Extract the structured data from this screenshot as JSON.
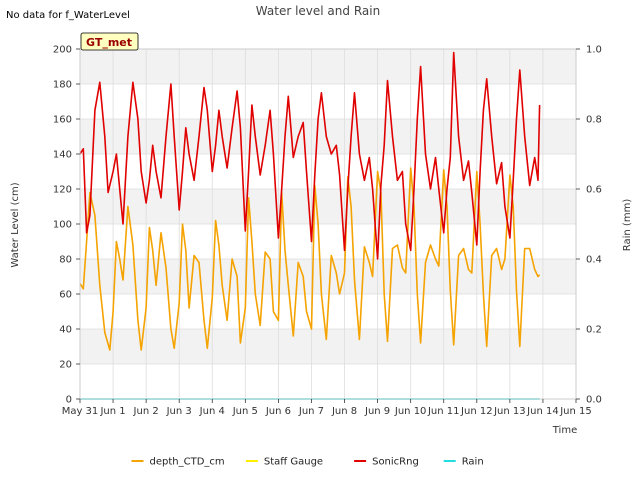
{
  "header": {
    "note": "No data for f_WaterLevel",
    "site_badge": "GT_met"
  },
  "chart_data": {
    "type": "line",
    "title": "Water level and Rain",
    "xlabel": "Time",
    "ylabel": "Water Level (cm)",
    "y2label": "Rain (mm)",
    "x_unit": "days since May 31",
    "xlim": [
      0,
      15
    ],
    "ylim": [
      0,
      200
    ],
    "y2lim": [
      0,
      1.0
    ],
    "x_ticks": [
      0,
      1,
      2,
      3,
      4,
      5,
      6,
      7,
      8,
      9,
      10,
      11,
      12,
      13,
      14,
      15
    ],
    "x_tick_labels": [
      "May 31",
      "Jun 1",
      "Jun 2",
      "Jun 3",
      "Jun 4",
      "Jun 5",
      "Jun 6",
      "Jun 7",
      "Jun 8",
      "Jun 9",
      "Jun 10",
      "Jun 11",
      "Jun 12",
      "Jun 13",
      "Jun 14",
      "Jun 15"
    ],
    "y_ticks": [
      0,
      20,
      40,
      60,
      80,
      100,
      120,
      140,
      160,
      180,
      200
    ],
    "y2_ticks": [
      0.0,
      0.2,
      0.4,
      0.6,
      0.8,
      1.0
    ],
    "y2_tick_labels": [
      "0.0",
      "0.2",
      "0.4",
      "0.6",
      "0.8",
      "1.0"
    ],
    "grid": true,
    "banded_background": true,
    "legend_position": "bottom",
    "series": [
      {
        "name": "depth_CTD_cm",
        "color": "#f5a300",
        "axis": "left",
        "x": [
          0.0,
          0.1,
          0.2,
          0.3,
          0.45,
          0.6,
          0.75,
          0.9,
          1.0,
          1.1,
          1.2,
          1.3,
          1.45,
          1.6,
          1.75,
          1.85,
          2.0,
          2.1,
          2.2,
          2.3,
          2.45,
          2.6,
          2.75,
          2.85,
          3.0,
          3.1,
          3.2,
          3.3,
          3.45,
          3.6,
          3.75,
          3.85,
          4.0,
          4.1,
          4.2,
          4.3,
          4.45,
          4.6,
          4.75,
          4.85,
          5.0,
          5.1,
          5.2,
          5.3,
          5.45,
          5.6,
          5.75,
          5.85,
          6.0,
          6.1,
          6.2,
          6.3,
          6.45,
          6.6,
          6.75,
          6.85,
          7.0,
          7.1,
          7.2,
          7.3,
          7.45,
          7.6,
          7.75,
          7.85,
          8.0,
          8.1,
          8.2,
          8.3,
          8.45,
          8.6,
          8.75,
          8.85,
          9.0,
          9.1,
          9.2,
          9.3,
          9.45,
          9.6,
          9.75,
          9.85,
          10.0,
          10.1,
          10.2,
          10.3,
          10.45,
          10.6,
          10.75,
          10.85,
          11.0,
          11.1,
          11.2,
          11.3,
          11.45,
          11.6,
          11.75,
          11.85,
          12.0,
          12.1,
          12.2,
          12.3,
          12.45,
          12.6,
          12.75,
          12.85,
          13.0,
          13.1,
          13.2,
          13.3,
          13.45,
          13.6,
          13.75,
          13.85
        ],
        "y": [
          66,
          63,
          90,
          118,
          105,
          65,
          38,
          28,
          50,
          90,
          80,
          68,
          110,
          88,
          45,
          28,
          52,
          98,
          85,
          65,
          95,
          75,
          40,
          29,
          55,
          100,
          85,
          52,
          82,
          78,
          45,
          29,
          58,
          102,
          88,
          65,
          45,
          80,
          70,
          32,
          52,
          115,
          90,
          60,
          42,
          84,
          80,
          50,
          45,
          118,
          85,
          65,
          36,
          78,
          70,
          50,
          40,
          122,
          100,
          60,
          34,
          82,
          72,
          60,
          72,
          127,
          110,
          68,
          34,
          87,
          78,
          70,
          130,
          118,
          60,
          33,
          86,
          88,
          75,
          72,
          132,
          110,
          60,
          32,
          78,
          88,
          80,
          76,
          131,
          110,
          62,
          31,
          82,
          86,
          74,
          72,
          130,
          100,
          60,
          30,
          82,
          86,
          74,
          80,
          128,
          110,
          62,
          30,
          86,
          86,
          74,
          70
        ],
        "x_tail": [
          13.9
        ],
        "y_tail": [
          71
        ]
      },
      {
        "name": "Staff Gauge",
        "color": "#ffee00",
        "axis": "left",
        "x": [],
        "y": []
      },
      {
        "name": "SonicRng",
        "color": "#e00000",
        "axis": "left",
        "x": [
          0.0,
          0.1,
          0.2,
          0.3,
          0.45,
          0.6,
          0.75,
          0.85,
          1.0,
          1.1,
          1.2,
          1.3,
          1.45,
          1.6,
          1.75,
          1.85,
          2.0,
          2.1,
          2.2,
          2.3,
          2.45,
          2.6,
          2.75,
          2.85,
          3.0,
          3.1,
          3.2,
          3.3,
          3.45,
          3.6,
          3.75,
          3.85,
          4.0,
          4.1,
          4.2,
          4.3,
          4.45,
          4.6,
          4.75,
          4.85,
          5.0,
          5.1,
          5.2,
          5.3,
          5.45,
          5.6,
          5.75,
          5.85,
          6.0,
          6.1,
          6.2,
          6.3,
          6.45,
          6.6,
          6.75,
          6.85,
          7.0,
          7.1,
          7.2,
          7.3,
          7.45,
          7.6,
          7.75,
          7.85,
          8.0,
          8.1,
          8.2,
          8.3,
          8.45,
          8.6,
          8.75,
          8.85,
          9.0,
          9.1,
          9.2,
          9.3,
          9.45,
          9.6,
          9.75,
          9.85,
          10.0,
          10.1,
          10.2,
          10.3,
          10.45,
          10.6,
          10.75,
          10.85,
          11.0,
          11.1,
          11.2,
          11.3,
          11.45,
          11.6,
          11.75,
          11.85,
          12.0,
          12.1,
          12.2,
          12.3,
          12.45,
          12.6,
          12.75,
          12.85,
          13.0,
          13.1,
          13.2,
          13.3,
          13.45,
          13.6,
          13.75,
          13.85
        ],
        "y": [
          140,
          143,
          95,
          105,
          165,
          181,
          150,
          118,
          130,
          140,
          120,
          100,
          150,
          181,
          160,
          130,
          112,
          125,
          145,
          130,
          115,
          150,
          180,
          150,
          108,
          130,
          155,
          140,
          125,
          150,
          178,
          165,
          130,
          145,
          165,
          150,
          132,
          155,
          176,
          155,
          96,
          130,
          168,
          150,
          128,
          145,
          165,
          140,
          92,
          120,
          150,
          173,
          138,
          150,
          158,
          130,
          90,
          128,
          160,
          175,
          150,
          140,
          145,
          128,
          85,
          120,
          150,
          175,
          140,
          125,
          138,
          120,
          80,
          122,
          145,
          182,
          150,
          125,
          130,
          100,
          85,
          120,
          160,
          190,
          140,
          120,
          138,
          120,
          95,
          120,
          138,
          198,
          150,
          125,
          136,
          118,
          88,
          130,
          165,
          183,
          150,
          123,
          135,
          110,
          92,
          125,
          160,
          188,
          150,
          122,
          138,
          125
        ],
        "x_tail": [
          13.9
        ],
        "y_tail": [
          168
        ]
      },
      {
        "name": "Rain",
        "color": "#22dddd",
        "axis": "right",
        "x": [
          0.0,
          13.9
        ],
        "y": [
          0.0,
          0.0
        ]
      }
    ]
  }
}
